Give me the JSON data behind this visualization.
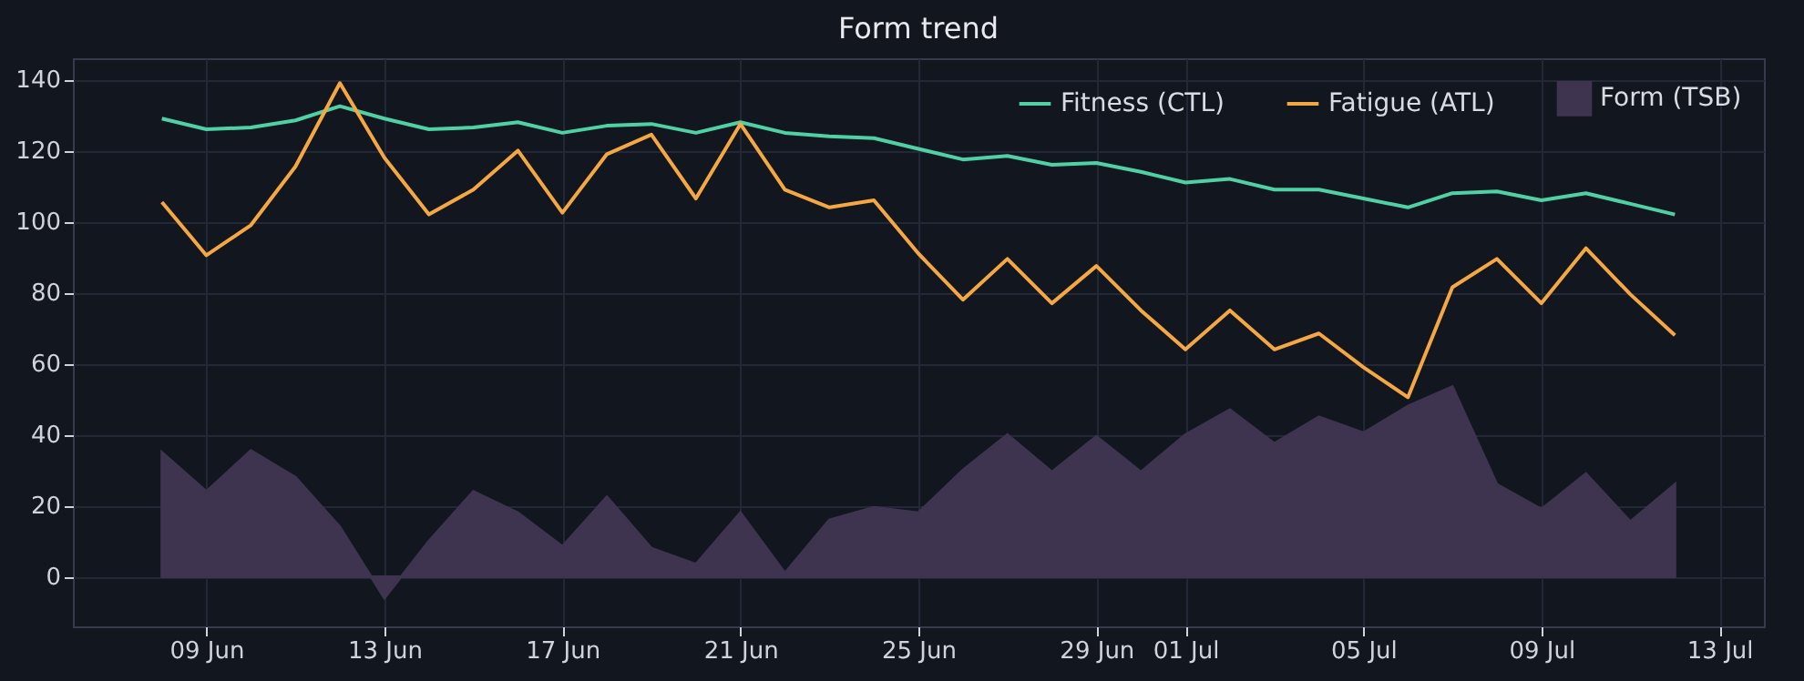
{
  "chart_data": {
    "type": "line",
    "title": "Form trend",
    "x": [
      "--06-08",
      "--06-09",
      "--06-10",
      "--06-11",
      "--06-12",
      "--06-13",
      "--06-14",
      "--06-15",
      "--06-16",
      "--06-17",
      "--06-18",
      "--06-19",
      "--06-20",
      "--06-21",
      "--06-22",
      "--06-23",
      "--06-24",
      "--06-25",
      "--06-26",
      "--06-27",
      "--06-28",
      "--06-29",
      "--06-30",
      "--07-01",
      "--07-02",
      "--07-03",
      "--07-04",
      "--07-05",
      "--07-06",
      "--07-07",
      "--07-08",
      "--07-09",
      "--07-10",
      "--07-11",
      "--07-12"
    ],
    "series": [
      {
        "name": "Fitness (CTL)",
        "color": "#4fd1a5",
        "values": [
          129,
          126,
          126.5,
          128.5,
          132.5,
          129,
          126,
          126.5,
          128,
          125,
          127,
          127.5,
          125,
          128,
          125,
          124,
          123.5,
          120.5,
          117.5,
          118.5,
          116,
          116.5,
          114,
          111,
          112,
          109,
          109,
          106.5,
          104,
          108,
          108.5,
          106,
          108,
          105,
          102
        ]
      },
      {
        "name": "Fatigue (ATL)",
        "color": "#f5a742",
        "values": [
          105.5,
          90.5,
          99,
          115.5,
          139,
          118,
          102,
          109,
          120,
          102.5,
          119,
          124.5,
          106.5,
          127.5,
          109,
          104,
          106,
          91,
          78,
          89.5,
          77,
          87.5,
          75,
          64,
          75,
          64,
          68.5,
          59,
          50.5,
          81.5,
          89.5,
          77,
          92.5,
          79.5,
          68
        ]
      },
      {
        "name": "Form (TSB)",
        "type": "area",
        "color": "#3f3450",
        "values": [
          35,
          24,
          35.5,
          28,
          14,
          -6,
          10,
          24,
          18,
          8.5,
          22.5,
          8,
          3.5,
          18,
          1,
          16,
          19.5,
          18,
          30,
          40,
          29.5,
          39.5,
          29.5,
          40,
          47,
          37.5,
          45,
          40.5,
          48,
          53.5,
          26,
          19,
          29,
          15.5,
          26
        ]
      }
    ],
    "xlim": [
      "--06-06",
      "--07-14"
    ],
    "xticks": [
      {
        "value": "--06-09",
        "label": "09 Jun"
      },
      {
        "value": "--06-13",
        "label": "13 Jun"
      },
      {
        "value": "--06-17",
        "label": "17 Jun"
      },
      {
        "value": "--06-21",
        "label": "21 Jun"
      },
      {
        "value": "--06-25",
        "label": "25 Jun"
      },
      {
        "value": "--06-29",
        "label": "29 Jun"
      },
      {
        "value": "--07-01",
        "label": "01 Jul"
      },
      {
        "value": "--07-05",
        "label": "05 Jul"
      },
      {
        "value": "--07-09",
        "label": "09 Jul"
      },
      {
        "value": "--07-13",
        "label": "13 Jul"
      }
    ],
    "ylim": [
      -14,
      146
    ],
    "yticks": [
      0,
      20,
      40,
      60,
      80,
      100,
      120,
      140
    ],
    "grid": true,
    "legend": "top right"
  }
}
